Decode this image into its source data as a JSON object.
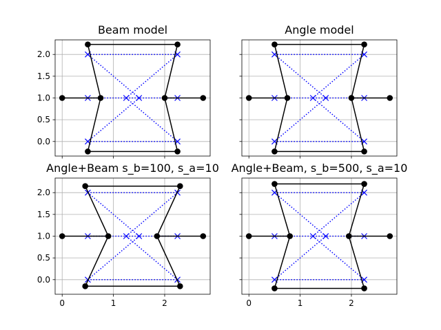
{
  "chart_data": [
    {
      "type": "line",
      "title": "Beam model",
      "xlim": [
        -0.1375,
        2.8875
      ],
      "ylim": [
        -0.335,
        2.335
      ],
      "xticks": [
        0,
        1,
        2
      ],
      "yticks": [
        0.0,
        0.5,
        1.0,
        1.5,
        2.0
      ],
      "ytick_labels": [
        "0.0",
        "0.5",
        "1.0",
        "1.5",
        "2.0"
      ],
      "show_xtick_labels": false,
      "show_ytick_labels": true,
      "grid": true,
      "series": [
        {
          "style": "dotted-x",
          "color": "#0000ff",
          "segments": [
            [
              [
                0.5,
                2.0
              ],
              [
                2.25,
                2.0
              ]
            ],
            [
              [
                0.5,
                0.0
              ],
              [
                2.25,
                0.0
              ]
            ],
            [
              [
                0.5,
                2.0
              ],
              [
                1.5,
                1.0
              ]
            ],
            [
              [
                0.5,
                0.0
              ],
              [
                1.5,
                1.0
              ]
            ],
            [
              [
                2.25,
                2.0
              ],
              [
                1.25,
                1.0
              ]
            ],
            [
              [
                2.25,
                0.0
              ],
              [
                1.25,
                1.0
              ]
            ],
            [
              [
                0.5,
                1.0
              ],
              [
                2.25,
                1.0
              ]
            ]
          ],
          "points": [
            [
              0.5,
              2.0
            ],
            [
              2.25,
              2.0
            ],
            [
              0.5,
              1.0
            ],
            [
              1.25,
              1.0
            ],
            [
              1.5,
              1.0
            ],
            [
              2.25,
              1.0
            ],
            [
              0.5,
              0.0
            ],
            [
              2.25,
              0.0
            ]
          ]
        },
        {
          "style": "solid-o",
          "color": "#000000",
          "segments": [
            [
              [
                0.5,
                2.23
              ],
              [
                2.25,
                2.23
              ]
            ],
            [
              [
                0.5,
                2.23
              ],
              [
                0.75,
                1.0
              ]
            ],
            [
              [
                0.75,
                1.0
              ],
              [
                0.5,
                -0.23
              ]
            ],
            [
              [
                0.5,
                -0.23
              ],
              [
                2.25,
                -0.23
              ]
            ],
            [
              [
                2.25,
                2.23
              ],
              [
                2.0,
                1.0
              ]
            ],
            [
              [
                2.0,
                1.0
              ],
              [
                2.25,
                -0.23
              ]
            ],
            [
              [
                0.0,
                1.0
              ],
              [
                0.75,
                1.0
              ]
            ],
            [
              [
                2.0,
                1.0
              ],
              [
                2.75,
                1.0
              ]
            ]
          ],
          "points": [
            [
              0.5,
              2.23
            ],
            [
              2.25,
              2.23
            ],
            [
              0.0,
              1.0
            ],
            [
              0.75,
              1.0
            ],
            [
              2.0,
              1.0
            ],
            [
              2.75,
              1.0
            ],
            [
              0.5,
              -0.23
            ],
            [
              2.25,
              -0.23
            ]
          ]
        }
      ]
    },
    {
      "type": "line",
      "title": "Angle model",
      "xlim": [
        -0.1375,
        2.8875
      ],
      "ylim": [
        -0.335,
        2.335
      ],
      "xticks": [
        0,
        1,
        2
      ],
      "yticks": [
        0.0,
        0.5,
        1.0,
        1.5,
        2.0
      ],
      "ytick_labels": [
        "0.0",
        "0.5",
        "1.0",
        "1.5",
        "2.0"
      ],
      "show_xtick_labels": false,
      "show_ytick_labels": false,
      "grid": true,
      "series": [
        {
          "style": "dotted-x",
          "color": "#0000ff",
          "segments": [
            [
              [
                0.5,
                2.0
              ],
              [
                2.25,
                2.0
              ]
            ],
            [
              [
                0.5,
                0.0
              ],
              [
                2.25,
                0.0
              ]
            ],
            [
              [
                0.5,
                2.0
              ],
              [
                1.5,
                1.0
              ]
            ],
            [
              [
                0.5,
                0.0
              ],
              [
                1.5,
                1.0
              ]
            ],
            [
              [
                2.25,
                2.0
              ],
              [
                1.25,
                1.0
              ]
            ],
            [
              [
                2.25,
                0.0
              ],
              [
                1.25,
                1.0
              ]
            ],
            [
              [
                0.5,
                1.0
              ],
              [
                2.25,
                1.0
              ]
            ]
          ],
          "points": [
            [
              0.5,
              2.0
            ],
            [
              2.25,
              2.0
            ],
            [
              0.5,
              1.0
            ],
            [
              1.25,
              1.0
            ],
            [
              1.5,
              1.0
            ],
            [
              2.25,
              1.0
            ],
            [
              0.5,
              0.0
            ],
            [
              2.25,
              0.0
            ]
          ]
        },
        {
          "style": "solid-o",
          "color": "#000000",
          "segments": [
            [
              [
                0.5,
                2.23
              ],
              [
                2.25,
                2.23
              ]
            ],
            [
              [
                0.5,
                2.23
              ],
              [
                0.75,
                1.0
              ]
            ],
            [
              [
                0.75,
                1.0
              ],
              [
                0.5,
                -0.23
              ]
            ],
            [
              [
                0.5,
                -0.23
              ],
              [
                2.25,
                -0.23
              ]
            ],
            [
              [
                2.25,
                2.23
              ],
              [
                2.0,
                1.0
              ]
            ],
            [
              [
                2.0,
                1.0
              ],
              [
                2.25,
                -0.23
              ]
            ],
            [
              [
                0.0,
                1.0
              ],
              [
                0.75,
                1.0
              ]
            ],
            [
              [
                2.0,
                1.0
              ],
              [
                2.75,
                1.0
              ]
            ]
          ],
          "points": [
            [
              0.5,
              2.23
            ],
            [
              2.25,
              2.23
            ],
            [
              0.0,
              1.0
            ],
            [
              0.75,
              1.0
            ],
            [
              2.0,
              1.0
            ],
            [
              2.75,
              1.0
            ],
            [
              0.5,
              -0.23
            ],
            [
              2.25,
              -0.23
            ]
          ]
        }
      ]
    },
    {
      "type": "line",
      "title": "Angle+Beam s_b=100, s_a=10",
      "xlim": [
        -0.1375,
        2.8875
      ],
      "ylim": [
        -0.335,
        2.335
      ],
      "xticks": [
        0,
        1,
        2
      ],
      "yticks": [
        0.0,
        0.5,
        1.0,
        1.5,
        2.0
      ],
      "ytick_labels": [
        "0.0",
        "0.5",
        "1.0",
        "1.5",
        "2.0"
      ],
      "show_xtick_labels": true,
      "show_ytick_labels": true,
      "grid": true,
      "series": [
        {
          "style": "dotted-x",
          "color": "#0000ff",
          "segments": [
            [
              [
                0.5,
                2.0
              ],
              [
                2.25,
                2.0
              ]
            ],
            [
              [
                0.5,
                0.0
              ],
              [
                2.25,
                0.0
              ]
            ],
            [
              [
                0.5,
                2.0
              ],
              [
                1.5,
                1.0
              ]
            ],
            [
              [
                0.5,
                0.0
              ],
              [
                1.5,
                1.0
              ]
            ],
            [
              [
                2.25,
                2.0
              ],
              [
                1.25,
                1.0
              ]
            ],
            [
              [
                2.25,
                0.0
              ],
              [
                1.25,
                1.0
              ]
            ],
            [
              [
                0.5,
                1.0
              ],
              [
                2.25,
                1.0
              ]
            ]
          ],
          "points": [
            [
              0.5,
              2.0
            ],
            [
              2.25,
              2.0
            ],
            [
              0.5,
              1.0
            ],
            [
              1.25,
              1.0
            ],
            [
              1.5,
              1.0
            ],
            [
              2.25,
              1.0
            ],
            [
              0.5,
              0.0
            ],
            [
              2.25,
              0.0
            ]
          ]
        },
        {
          "style": "solid-o",
          "color": "#000000",
          "segments": [
            [
              [
                0.45,
                2.15
              ],
              [
                2.3,
                2.15
              ]
            ],
            [
              [
                0.45,
                2.15
              ],
              [
                0.9,
                1.0
              ]
            ],
            [
              [
                0.9,
                1.0
              ],
              [
                0.45,
                -0.15
              ]
            ],
            [
              [
                0.45,
                -0.15
              ],
              [
                2.3,
                -0.15
              ]
            ],
            [
              [
                2.3,
                2.15
              ],
              [
                1.85,
                1.0
              ]
            ],
            [
              [
                1.85,
                1.0
              ],
              [
                2.3,
                -0.15
              ]
            ],
            [
              [
                0.0,
                1.0
              ],
              [
                0.9,
                1.0
              ]
            ],
            [
              [
                1.85,
                1.0
              ],
              [
                2.75,
                1.0
              ]
            ]
          ],
          "points": [
            [
              0.45,
              2.15
            ],
            [
              2.3,
              2.15
            ],
            [
              0.0,
              1.0
            ],
            [
              0.9,
              1.0
            ],
            [
              1.85,
              1.0
            ],
            [
              2.75,
              1.0
            ],
            [
              0.45,
              -0.15
            ],
            [
              2.3,
              -0.15
            ]
          ]
        }
      ]
    },
    {
      "type": "line",
      "title": "Angle+Beam, s_b=500, s_a=10",
      "xlim": [
        -0.1375,
        2.8875
      ],
      "ylim": [
        -0.335,
        2.335
      ],
      "xticks": [
        0,
        1,
        2
      ],
      "yticks": [
        0.0,
        0.5,
        1.0,
        1.5,
        2.0
      ],
      "ytick_labels": [
        "0.0",
        "0.5",
        "1.0",
        "1.5",
        "2.0"
      ],
      "show_xtick_labels": true,
      "show_ytick_labels": false,
      "grid": true,
      "series": [
        {
          "style": "dotted-x",
          "color": "#0000ff",
          "segments": [
            [
              [
                0.5,
                2.0
              ],
              [
                2.25,
                2.0
              ]
            ],
            [
              [
                0.5,
                0.0
              ],
              [
                2.25,
                0.0
              ]
            ],
            [
              [
                0.5,
                2.0
              ],
              [
                1.5,
                1.0
              ]
            ],
            [
              [
                0.5,
                0.0
              ],
              [
                1.5,
                1.0
              ]
            ],
            [
              [
                2.25,
                2.0
              ],
              [
                1.25,
                1.0
              ]
            ],
            [
              [
                2.25,
                0.0
              ],
              [
                1.25,
                1.0
              ]
            ],
            [
              [
                0.5,
                1.0
              ],
              [
                2.25,
                1.0
              ]
            ]
          ],
          "points": [
            [
              0.5,
              2.0
            ],
            [
              2.25,
              2.0
            ],
            [
              0.5,
              1.0
            ],
            [
              1.25,
              1.0
            ],
            [
              1.5,
              1.0
            ],
            [
              2.25,
              1.0
            ],
            [
              0.5,
              0.0
            ],
            [
              2.25,
              0.0
            ]
          ]
        },
        {
          "style": "solid-o",
          "color": "#000000",
          "segments": [
            [
              [
                0.5,
                2.2
              ],
              [
                2.25,
                2.2
              ]
            ],
            [
              [
                0.5,
                2.2
              ],
              [
                0.8,
                1.0
              ]
            ],
            [
              [
                0.8,
                1.0
              ],
              [
                0.5,
                -0.2
              ]
            ],
            [
              [
                0.5,
                -0.2
              ],
              [
                2.25,
                -0.2
              ]
            ],
            [
              [
                2.25,
                2.2
              ],
              [
                1.95,
                1.0
              ]
            ],
            [
              [
                1.95,
                1.0
              ],
              [
                2.25,
                -0.2
              ]
            ],
            [
              [
                0.0,
                1.0
              ],
              [
                0.8,
                1.0
              ]
            ],
            [
              [
                1.95,
                1.0
              ],
              [
                2.75,
                1.0
              ]
            ]
          ],
          "points": [
            [
              0.5,
              2.2
            ],
            [
              2.25,
              2.2
            ],
            [
              0.0,
              1.0
            ],
            [
              0.8,
              1.0
            ],
            [
              1.95,
              1.0
            ],
            [
              2.75,
              1.0
            ],
            [
              0.5,
              -0.2
            ],
            [
              2.25,
              -0.2
            ]
          ]
        }
      ]
    }
  ]
}
